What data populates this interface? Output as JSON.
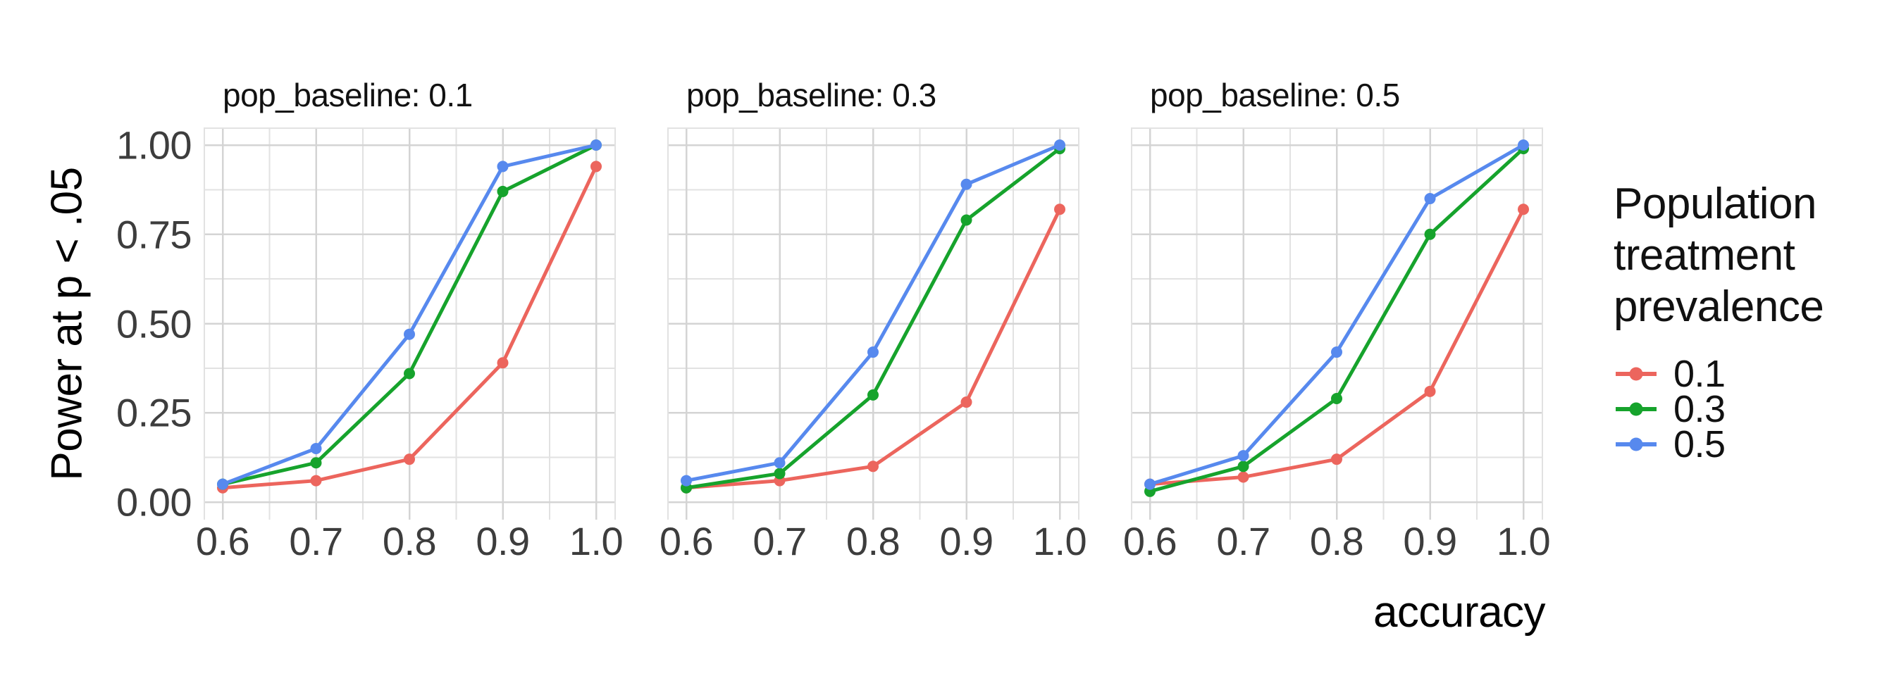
{
  "chart": {
    "y_title": "Power at p < .05",
    "x_title": "accuracy",
    "y_ticks": [
      "1.00",
      "0.75",
      "0.50",
      "0.25",
      "0.00"
    ],
    "x_ticks": [
      "0.6",
      "0.7",
      "0.8",
      "0.9",
      "1.0"
    ]
  },
  "legend": {
    "title": "Population treatment prevalence",
    "items": [
      {
        "label": "0.1",
        "color": "#EC655D"
      },
      {
        "label": "0.3",
        "color": "#16A32C"
      },
      {
        "label": "0.5",
        "color": "#5789EE"
      }
    ]
  },
  "colors": {
    "grid_major": "#D4D4D4",
    "grid_minor": "#E2E2E2",
    "tick_text": "#3d3d3d",
    "title_text": "#000000"
  },
  "chart_data": {
    "type": "line",
    "title": "",
    "xlabel": "accuracy",
    "ylabel": "Power at p < .05",
    "x": [
      0.6,
      0.7,
      0.8,
      0.9,
      1.0
    ],
    "xlim": [
      0.58,
      1.02
    ],
    "ylim": [
      0,
      1.05
    ],
    "grid": true,
    "legend_position": "right",
    "legend_title": "Population treatment prevalence",
    "facet_variable": "pop_baseline",
    "facets": [
      {
        "label": "pop_baseline: 0.1",
        "series": [
          {
            "name": "0.1",
            "color": "#EC655D",
            "values": [
              0.04,
              0.06,
              0.12,
              0.39,
              0.94
            ]
          },
          {
            "name": "0.3",
            "color": "#16A32C",
            "values": [
              0.05,
              0.11,
              0.36,
              0.87,
              1.0
            ]
          },
          {
            "name": "0.5",
            "color": "#5789EE",
            "values": [
              0.05,
              0.15,
              0.47,
              0.94,
              1.0
            ]
          }
        ]
      },
      {
        "label": "pop_baseline: 0.3",
        "series": [
          {
            "name": "0.1",
            "color": "#EC655D",
            "values": [
              0.04,
              0.06,
              0.1,
              0.28,
              0.82
            ]
          },
          {
            "name": "0.3",
            "color": "#16A32C",
            "values": [
              0.04,
              0.08,
              0.3,
              0.79,
              0.99
            ]
          },
          {
            "name": "0.5",
            "color": "#5789EE",
            "values": [
              0.06,
              0.11,
              0.42,
              0.89,
              1.0
            ]
          }
        ]
      },
      {
        "label": "pop_baseline: 0.5",
        "series": [
          {
            "name": "0.1",
            "color": "#EC655D",
            "values": [
              0.05,
              0.07,
              0.12,
              0.31,
              0.82
            ]
          },
          {
            "name": "0.3",
            "color": "#16A32C",
            "values": [
              0.03,
              0.1,
              0.29,
              0.75,
              0.99
            ]
          },
          {
            "name": "0.5",
            "color": "#5789EE",
            "values": [
              0.05,
              0.13,
              0.42,
              0.85,
              1.0
            ]
          }
        ]
      }
    ]
  }
}
